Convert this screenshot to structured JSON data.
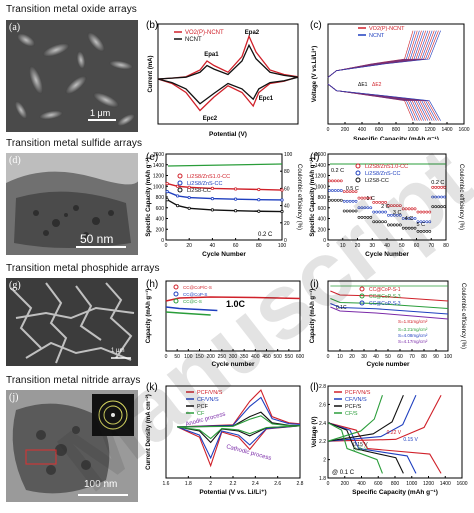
{
  "rows": [
    {
      "title": "Transition metal oxide arrays"
    },
    {
      "title": "Transition metal sulfide arrays"
    },
    {
      "title": "Transition metal phosphide arrays"
    },
    {
      "title": "Transition metal nitride arrays"
    }
  ],
  "panel_letters": [
    "(a)",
    "(b)",
    "(c)",
    "(d)",
    "(e)",
    "(f)",
    "(g)",
    "(h)",
    "(i)",
    "(j)",
    "(k)",
    "(l)"
  ],
  "images": {
    "a_scale": "1 μm",
    "d_scale": "50 nm",
    "g_scale": "1 μm",
    "j_scale": "100 nm"
  },
  "watermark": "Manuscript",
  "colors": {
    "red": "#d0212a",
    "blue": "#1f3fbf",
    "black": "#111111",
    "green": "#2a9d3a",
    "purple": "#7a2aa8",
    "orange": "#e07020"
  },
  "chart_data": [
    {
      "id": "b",
      "type": "line",
      "xlabel": "Potential (V)",
      "ylabel": "Current (mA)",
      "legend": [
        "VO2(P)-NCNT",
        "NCNT"
      ],
      "annotations": [
        "Epa1",
        "Epa2",
        "Epc1",
        "Epc2"
      ],
      "series": [
        {
          "name": "VO2(P)-NCNT",
          "color": "#d0212a",
          "x": [
            0,
            0.1,
            0.2,
            0.3,
            0.35,
            0.4,
            0.5,
            0.6,
            0.65,
            0.7,
            0.8,
            0.9,
            1.0,
            0.9,
            0.8,
            0.72,
            0.68,
            0.6,
            0.5,
            0.4,
            0.3,
            0.2,
            0.1,
            0
          ],
          "y": [
            0,
            0.02,
            0.05,
            0.2,
            0.4,
            0.3,
            0.15,
            0.5,
            0.95,
            0.6,
            0.2,
            0.1,
            0.05,
            -0.05,
            -0.1,
            -0.3,
            -0.6,
            -0.3,
            -0.15,
            -0.4,
            -0.7,
            -0.3,
            -0.1,
            0
          ]
        },
        {
          "name": "NCNT",
          "color": "#111111",
          "x": [
            0,
            0.1,
            0.2,
            0.3,
            0.35,
            0.4,
            0.5,
            0.6,
            0.65,
            0.7,
            0.8,
            0.9,
            1.0,
            0.9,
            0.8,
            0.72,
            0.68,
            0.6,
            0.5,
            0.4,
            0.3,
            0.2,
            0.1,
            0
          ],
          "y": [
            0,
            0.02,
            0.04,
            0.15,
            0.3,
            0.22,
            0.1,
            0.4,
            0.75,
            0.45,
            0.15,
            0.08,
            0.04,
            -0.04,
            -0.08,
            -0.22,
            -0.45,
            -0.22,
            -0.1,
            -0.32,
            -0.55,
            -0.22,
            -0.08,
            0
          ]
        }
      ]
    },
    {
      "id": "c",
      "type": "line",
      "xlabel": "Specific Capacity (mAh g⁻¹)",
      "ylabel": "Voltage (V vs.Li/Li⁺)",
      "legend": [
        "VO2(P)-NCNT",
        "NCNT"
      ],
      "annotations": [
        "ΔE1",
        "ΔE2"
      ],
      "xticks": [
        0,
        200,
        400,
        600,
        800,
        1000,
        1200,
        1400,
        1600
      ],
      "xlim": [
        0,
        1600
      ],
      "ylim": [
        1.5,
        4.5
      ]
    },
    {
      "id": "e",
      "type": "line",
      "xlabel": "Cycle Number",
      "ylabel": "Specific Capacity (mAh g⁻¹)",
      "y2label": "Coulombic efficiency (%)",
      "legend": [
        "Li2S8/ZnS1.0-CC",
        "Li2S8/ZnS-CC",
        "Li2S8-CC"
      ],
      "note": "0.2 C",
      "xticks": [
        0,
        20,
        40,
        60,
        80,
        100
      ],
      "yticks": [
        0,
        200,
        400,
        600,
        800,
        1000,
        1200,
        1400,
        1600
      ],
      "y2ticks": [
        0,
        20,
        40,
        60,
        80,
        100
      ],
      "xlim": [
        0,
        100
      ],
      "ylim": [
        0,
        1600
      ],
      "series": [
        {
          "name": "Li2S8/ZnS1.0-CC",
          "color": "#d0212a",
          "x": [
            1,
            10,
            20,
            40,
            60,
            80,
            100
          ],
          "y": [
            1050,
            1000,
            980,
            960,
            950,
            940,
            930
          ]
        },
        {
          "name": "Li2S8/ZnS-CC",
          "color": "#1f3fbf",
          "x": [
            1,
            10,
            20,
            40,
            60,
            80,
            100
          ],
          "y": [
            900,
            820,
            790,
            770,
            760,
            750,
            745
          ]
        },
        {
          "name": "Li2S8-CC",
          "color": "#111111",
          "x": [
            1,
            10,
            20,
            40,
            60,
            80,
            100
          ],
          "y": [
            750,
            640,
            590,
            560,
            545,
            535,
            530
          ]
        }
      ]
    },
    {
      "id": "f",
      "type": "scatter",
      "xlabel": "Cycle Number",
      "ylabel": "Specific Capacity (mAh g⁻¹)",
      "y2label": "Coulombic efficiency (%)",
      "legend": [
        "Li2S8/ZnS1.0-CC",
        "Li2S8/ZnS-CC",
        "Li2S8-CC"
      ],
      "rate_labels": [
        "0.2 C",
        "0.5 C",
        "1 C",
        "2 C",
        "3 C",
        "4 C",
        "5 C",
        "0.2 C"
      ],
      "xticks": [
        0,
        10,
        20,
        30,
        40,
        50,
        60,
        70,
        80
      ],
      "yticks": [
        0,
        200,
        400,
        600,
        800,
        1000,
        1200,
        1400,
        1600
      ],
      "xlim": [
        0,
        80
      ],
      "ylim": [
        0,
        1600
      ]
    },
    {
      "id": "h",
      "type": "line",
      "xlabel": "Cycle number",
      "ylabel": "Capacity (mAh g⁻¹)",
      "legend": [
        "CC@CoP/C-S",
        "CC@CoP-S",
        "CC@C-S"
      ],
      "note": "1.0C",
      "xticks": [
        0,
        50,
        100,
        150,
        200,
        250,
        300,
        350,
        400,
        450,
        500,
        550,
        600
      ],
      "xlim": [
        0,
        600
      ],
      "ylim": [
        0,
        1400
      ]
    },
    {
      "id": "i",
      "type": "line",
      "xlabel": "Cycle number",
      "ylabel": "Capacity (mAh g⁻¹)",
      "y2label": "Coulombic efficiency (%)",
      "legend": [
        "CC@CoP-S-1",
        "CC@CoP-S-3",
        "CC@CoP-S-3"
      ],
      "annotations": [
        "S=1.81mg/cm²",
        "S=3.21mg/cm²",
        "S=4.08mg/cm²",
        "S=4.17mg/cm²",
        "0.1C"
      ],
      "xticks": [
        0,
        10,
        20,
        30,
        40,
        50,
        60,
        70,
        80,
        90,
        100
      ],
      "xlim": [
        0,
        100
      ],
      "ylim": [
        0,
        1400
      ]
    },
    {
      "id": "k",
      "type": "line",
      "xlabel": "Potential (V vs. Li/Li⁺)",
      "ylabel": "Current Density (mA cm⁻²)",
      "legend": [
        "PCF/VN/S",
        "CF/VN/S",
        "PCF",
        "CF"
      ],
      "annotations": [
        "Anodic process",
        "Cathodic process"
      ],
      "xticks": [
        1.6,
        1.8,
        2.0,
        2.2,
        2.4,
        2.6,
        2.8
      ],
      "xlim": [
        1.6,
        2.8
      ],
      "ylim": [
        -5,
        4
      ]
    },
    {
      "id": "l",
      "type": "line",
      "xlabel": "Specific Capacity (mAh g⁻¹)",
      "ylabel": "Voltage (V)",
      "legend": [
        "PCF/VN/S",
        "CF/VN/S",
        "PCF/S",
        "CF/S"
      ],
      "annotations": [
        "0.22 V",
        "0.15 V",
        "0.15 V",
        "0.25 V",
        "@ 0.1 C"
      ],
      "xticks": [
        0,
        200,
        400,
        600,
        800,
        1000,
        1200,
        1400,
        1600
      ],
      "yticks": [
        1.8,
        2.0,
        2.2,
        2.4,
        2.6,
        2.8
      ],
      "xlim": [
        0,
        1600
      ],
      "ylim": [
        1.8,
        2.8
      ]
    }
  ]
}
